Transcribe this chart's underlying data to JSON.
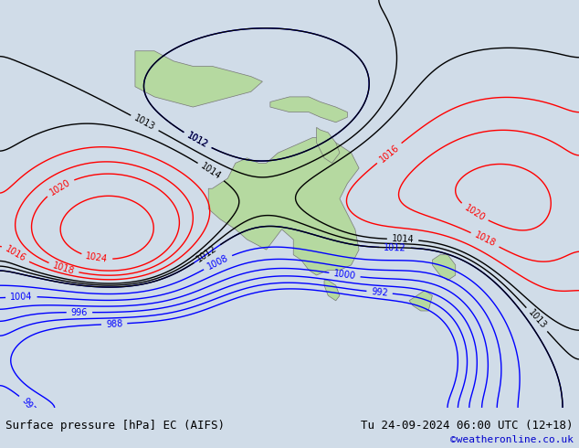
{
  "title_left": "Surface pressure [hPa] EC (AIFS)",
  "title_right": "Tu 24-09-2024 06:00 UTC (12+18)",
  "credit": "©weatheronline.co.uk",
  "bg_color": "#d0dce8",
  "land_color": "#b5d9a0",
  "land_border_color": "#888888",
  "contour_color_blue": "#0000ff",
  "contour_color_black": "#000000",
  "contour_color_red": "#ff0000",
  "footer_bg": "#e8e8e8",
  "footer_text_color": "#000000",
  "credit_color": "#0000cc"
}
